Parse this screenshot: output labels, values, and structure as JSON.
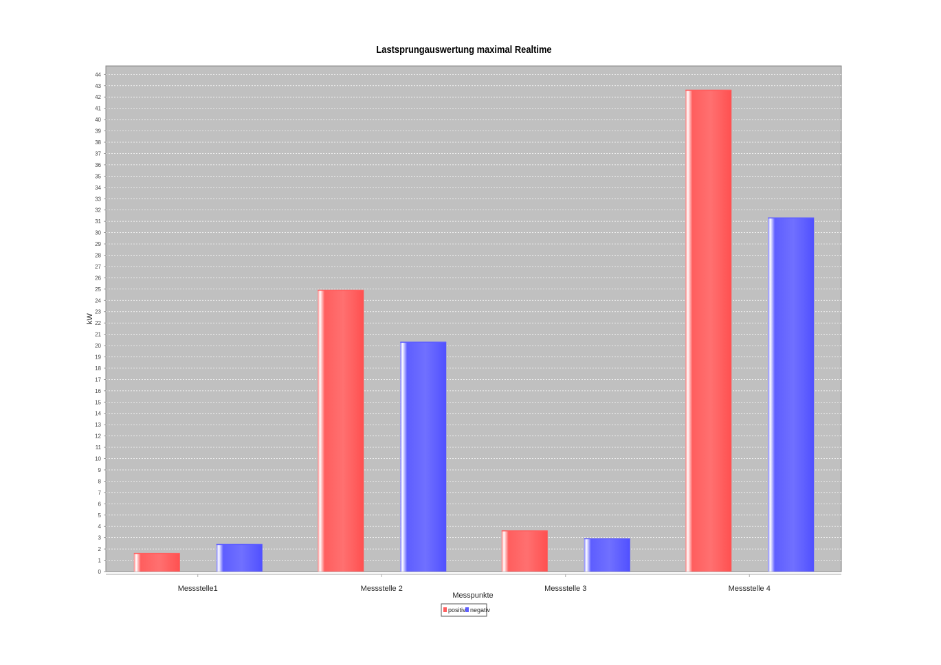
{
  "chart_data": {
    "type": "bar",
    "title": "Lastsprungauswertung maximal Realtime",
    "xlabel": "Messpunkte",
    "ylabel": "kW",
    "categories": [
      "Messstelle1",
      "Messstelle 2",
      "Messstelle 3",
      "Messstelle 4"
    ],
    "series": [
      {
        "name": "positiv",
        "color": "#ff5e5e",
        "values": [
          1.6,
          24.9,
          3.6,
          42.6
        ]
      },
      {
        "name": "negativ",
        "color": "#5e5eff",
        "values": [
          2.4,
          20.3,
          2.9,
          31.3
        ]
      }
    ],
    "ylim": [
      0,
      44
    ],
    "ytick_step": 1,
    "grid": true,
    "legend": "bottom-center",
    "plot_background": "#c0c0c0"
  }
}
